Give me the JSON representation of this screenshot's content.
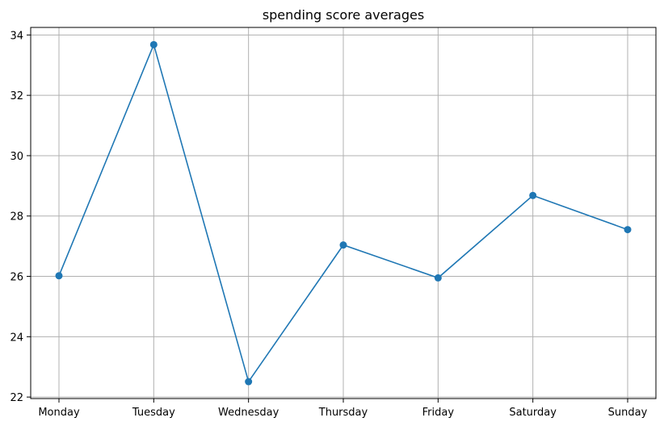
{
  "chart_data": {
    "type": "line",
    "title": "spending score averages",
    "xlabel": "",
    "ylabel": "",
    "categories": [
      "Monday",
      "Tuesday",
      "Wednesday",
      "Thursday",
      "Friday",
      "Saturday",
      "Sunday"
    ],
    "series": [
      {
        "values": [
          26.02,
          33.68,
          22.51,
          27.04,
          25.95,
          28.68,
          27.55
        ],
        "color": "#1f77b4",
        "marker": "circle"
      }
    ],
    "ylim": [
      21.95,
      34.25
    ],
    "yticks": [
      22,
      24,
      26,
      28,
      30,
      32,
      34
    ],
    "ytick_labels": [
      "22",
      "24",
      "26",
      "28",
      "30",
      "32",
      "34"
    ],
    "grid": true,
    "legend": "none"
  }
}
